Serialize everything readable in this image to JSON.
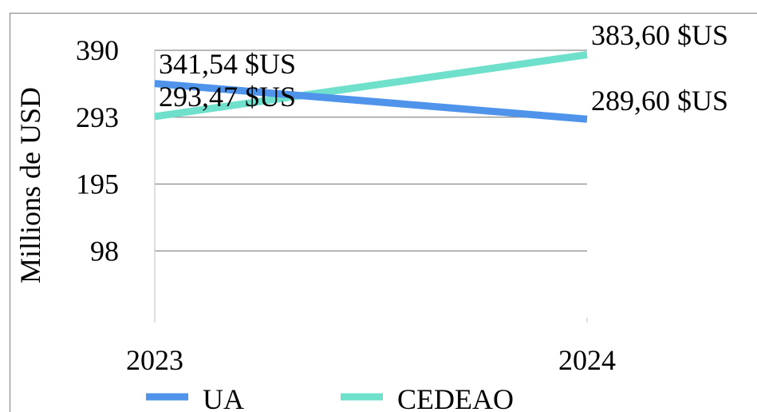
{
  "chart_data": {
    "type": "line",
    "categories": [
      "2023",
      "2024"
    ],
    "ylabel": "Millions de USD",
    "yticks": [
      "98",
      "195",
      "293",
      "390"
    ],
    "ytick_values": [
      97.5,
      195,
      292.5,
      390
    ],
    "ylim": [
      0,
      390
    ],
    "grid": true,
    "legend_position": "bottom",
    "series": [
      {
        "name": "UA",
        "values": [
          341.54,
          289.6
        ],
        "labels": [
          "341,54 $US",
          "289,60 $US"
        ],
        "color": "#4f94ea"
      },
      {
        "name": "CEDEAO",
        "values": [
          293.47,
          383.6
        ],
        "labels": [
          "293,47 $US",
          "383,60 $US"
        ],
        "color": "#6ee0cc"
      }
    ]
  }
}
